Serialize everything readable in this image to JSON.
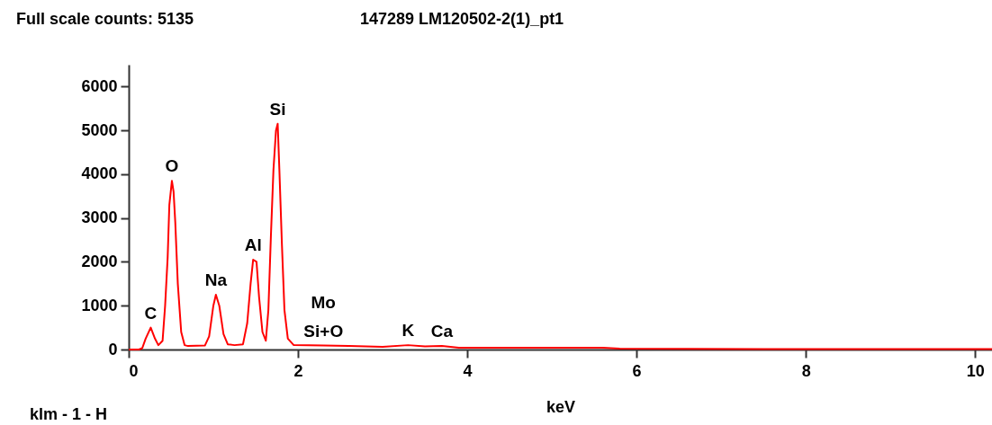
{
  "chart_data": {
    "type": "line",
    "xlabel": "keV",
    "x": [
      0,
      0.12,
      0.16,
      0.2,
      0.26,
      0.31,
      0.35,
      0.4,
      0.43,
      0.46,
      0.48,
      0.51,
      0.53,
      0.55,
      0.58,
      0.62,
      0.66,
      0.7,
      0.9,
      0.95,
      1.0,
      1.03,
      1.07,
      1.12,
      1.17,
      1.25,
      1.35,
      1.4,
      1.44,
      1.47,
      1.51,
      1.54,
      1.58,
      1.62,
      1.65,
      1.68,
      1.71,
      1.74,
      1.76,
      1.78,
      1.81,
      1.84,
      1.88,
      1.95,
      2.3,
      2.6,
      3.0,
      3.3,
      3.5,
      3.7,
      3.9,
      5.6,
      5.8,
      7.5,
      10.2
    ],
    "series": [
      {
        "color": "#ff0000",
        "values": [
          0,
          0,
          30,
          250,
          500,
          250,
          100,
          200,
          1000,
          2100,
          3300,
          3850,
          3600,
          2900,
          1500,
          400,
          100,
          80,
          90,
          300,
          1000,
          1250,
          1000,
          350,
          120,
          100,
          120,
          600,
          1500,
          2050,
          2000,
          1200,
          400,
          200,
          900,
          2600,
          4100,
          5000,
          5150,
          4100,
          2400,
          900,
          250,
          100,
          90,
          80,
          60,
          100,
          70,
          80,
          40,
          40,
          20,
          10,
          10
        ]
      }
    ],
    "xlim": [
      0,
      10.2
    ],
    "xticks": [
      0,
      2,
      4,
      6,
      8,
      10
    ],
    "ylim": [
      0,
      6500
    ],
    "yticks": [
      0,
      1000,
      2000,
      3000,
      4000,
      5000,
      6000
    ],
    "grid": false,
    "annotations": [
      "Full scale counts: 5135",
      "147289 LM120502-2(1)_pt1",
      "klm - 1 - H",
      {
        "text": "C",
        "x": 0.26,
        "y": 500
      },
      {
        "text": "O",
        "x": 0.51,
        "y": 3850
      },
      {
        "text": "Na",
        "x": 1.03,
        "y": 1250
      },
      {
        "text": "Al",
        "x": 1.47,
        "y": 2050
      },
      {
        "text": "Si",
        "x": 1.76,
        "y": 5150
      },
      {
        "text": "Mo",
        "x": 2.3,
        "y": 90
      },
      {
        "text": "Si+O",
        "x": 2.3,
        "y": 90
      },
      {
        "text": "K",
        "x": 3.3,
        "y": 100
      },
      {
        "text": "Ca",
        "x": 3.7,
        "y": 80
      }
    ]
  }
}
